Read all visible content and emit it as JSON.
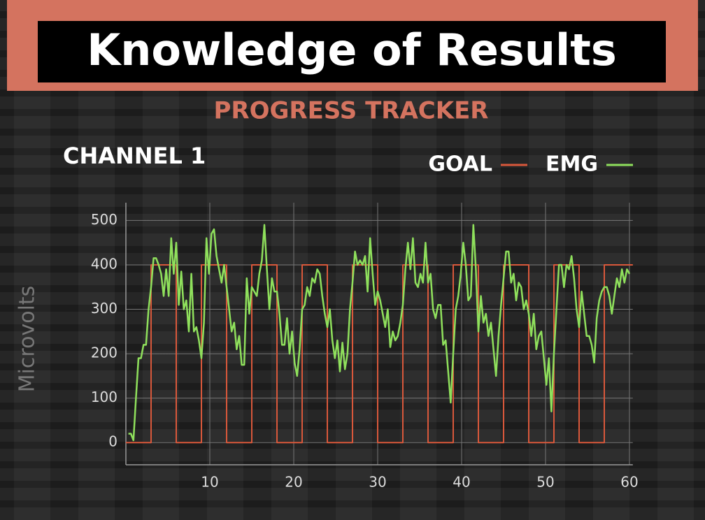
{
  "header": {
    "title": "Knowledge of Results"
  },
  "chart_data": {
    "type": "line",
    "title": "PROGRESS TRACKER",
    "subtitle": "CHANNEL 1",
    "y_label": "Microvolts",
    "xlim": [
      0,
      60.4
    ],
    "xticks": [
      10,
      20,
      30,
      40,
      50,
      60
    ],
    "ylim": [
      -50,
      540
    ],
    "yticks": [
      0,
      100,
      200,
      300,
      400,
      500
    ],
    "grid": true,
    "legend": "top-right",
    "series": [
      {
        "name": "GOAL",
        "color": "#d9583b",
        "x": [
          0,
          3,
          3,
          6,
          6,
          9,
          9,
          12,
          12,
          15,
          15,
          18,
          18,
          21,
          21,
          24,
          24,
          27,
          27,
          30,
          30,
          33,
          33,
          36,
          36,
          39,
          39,
          42,
          42,
          45,
          45,
          48,
          48,
          51,
          51,
          54,
          54,
          57,
          57,
          60.4
        ],
        "values": [
          0,
          0,
          400,
          400,
          0,
          0,
          400,
          400,
          0,
          0,
          400,
          400,
          0,
          0,
          400,
          400,
          0,
          0,
          400,
          400,
          0,
          0,
          400,
          400,
          0,
          0,
          400,
          400,
          0,
          0,
          400,
          400,
          0,
          0,
          400,
          400,
          0,
          0,
          400,
          400
        ]
      },
      {
        "name": "EMG",
        "color": "#8fe05c",
        "x": [
          0.3,
          0.6,
          0.9,
          1.2,
          1.5,
          1.8,
          2.1,
          2.4,
          2.7,
          3,
          3.3,
          3.6,
          3.9,
          4.2,
          4.5,
          4.8,
          5.1,
          5.4,
          5.7,
          6,
          6.3,
          6.6,
          6.9,
          7.2,
          7.5,
          7.8,
          8.1,
          8.4,
          8.7,
          9,
          9.3,
          9.6,
          9.9,
          10.2,
          10.5,
          10.8,
          11.1,
          11.4,
          11.7,
          12,
          12.3,
          12.6,
          12.9,
          13.2,
          13.5,
          13.8,
          14.1,
          14.4,
          14.7,
          15,
          15.3,
          15.6,
          15.9,
          16.2,
          16.5,
          16.8,
          17.1,
          17.4,
          17.7,
          18,
          18.3,
          18.6,
          18.9,
          19.2,
          19.5,
          19.8,
          20.1,
          20.4,
          20.7,
          21,
          21.3,
          21.6,
          21.9,
          22.2,
          22.5,
          22.8,
          23.1,
          23.4,
          23.7,
          24,
          24.3,
          24.6,
          24.9,
          25.2,
          25.5,
          25.8,
          26.1,
          26.4,
          26.7,
          27,
          27.3,
          27.6,
          27.9,
          28.2,
          28.5,
          28.8,
          29.1,
          29.4,
          29.7,
          30,
          30.3,
          30.6,
          30.9,
          31.2,
          31.5,
          31.8,
          32.1,
          32.4,
          32.7,
          33,
          33.3,
          33.6,
          33.9,
          34.2,
          34.5,
          34.8,
          35.1,
          35.4,
          35.7,
          36,
          36.3,
          36.6,
          36.9,
          37.2,
          37.5,
          37.8,
          38.1,
          38.4,
          38.7,
          39,
          39.3,
          39.6,
          39.9,
          40.2,
          40.5,
          40.8,
          41.1,
          41.4,
          41.7,
          42,
          42.3,
          42.6,
          42.9,
          43.2,
          43.5,
          43.8,
          44.1,
          44.4,
          44.7,
          45,
          45.3,
          45.6,
          45.9,
          46.2,
          46.5,
          46.8,
          47.1,
          47.4,
          47.7,
          48,
          48.3,
          48.6,
          48.9,
          49.2,
          49.5,
          49.8,
          50.1,
          50.4,
          50.7,
          51,
          51.3,
          51.6,
          51.9,
          52.2,
          52.5,
          52.8,
          53.1,
          53.4,
          53.7,
          54,
          54.3,
          54.6,
          54.9,
          55.2,
          55.5,
          55.8,
          56.1,
          56.4,
          56.7,
          57,
          57.3,
          57.6,
          57.9,
          58.2,
          58.5,
          58.8,
          59.1,
          59.4,
          59.7,
          60
        ],
        "values": [
          20,
          20,
          5,
          100,
          190,
          190,
          220,
          220,
          300,
          350,
          415,
          415,
          400,
          380,
          330,
          390,
          330,
          460,
          380,
          450,
          310,
          385,
          300,
          320,
          250,
          380,
          250,
          260,
          230,
          190,
          270,
          460,
          380,
          470,
          480,
          420,
          390,
          360,
          400,
          350,
          300,
          250,
          270,
          210,
          240,
          175,
          175,
          370,
          290,
          350,
          340,
          330,
          380,
          410,
          490,
          390,
          300,
          370,
          340,
          340,
          290,
          220,
          220,
          280,
          200,
          250,
          180,
          150,
          210,
          300,
          310,
          350,
          330,
          370,
          360,
          390,
          380,
          330,
          290,
          260,
          300,
          230,
          190,
          230,
          160,
          225,
          165,
          200,
          300,
          360,
          430,
          400,
          410,
          400,
          420,
          340,
          460,
          380,
          310,
          340,
          320,
          290,
          260,
          300,
          215,
          250,
          230,
          240,
          270,
          310,
          390,
          450,
          390,
          460,
          360,
          350,
          380,
          360,
          450,
          360,
          380,
          300,
          280,
          310,
          310,
          220,
          230,
          160,
          90,
          200,
          300,
          330,
          380,
          450,
          400,
          320,
          330,
          490,
          390,
          250,
          330,
          270,
          290,
          240,
          270,
          210,
          150,
          240,
          310,
          370,
          430,
          430,
          360,
          380,
          320,
          360,
          350,
          300,
          320,
          290,
          240,
          290,
          210,
          240,
          250,
          190,
          130,
          190,
          70,
          200,
          300,
          400,
          400,
          350,
          400,
          390,
          420,
          370,
          300,
          260,
          340,
          290,
          240,
          240,
          220,
          180,
          280,
          320,
          340,
          350,
          350,
          330,
          290,
          330,
          370,
          350,
          390,
          360,
          390,
          380
        ]
      }
    ]
  }
}
